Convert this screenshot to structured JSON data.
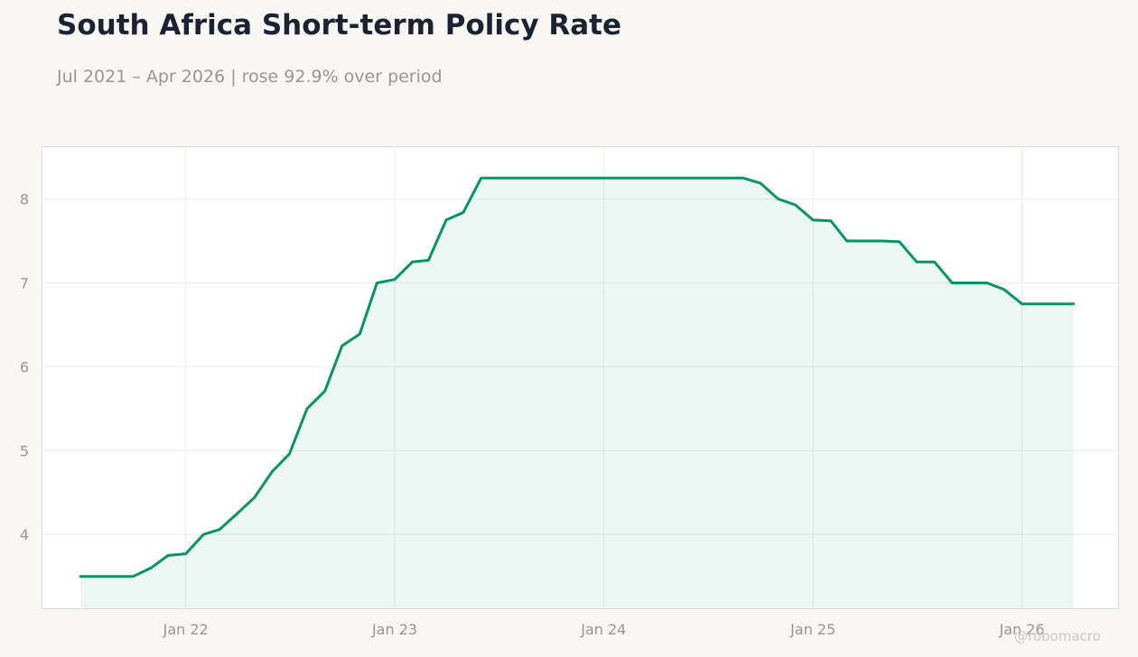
{
  "header": {
    "title": "South Africa Short-term Policy Rate",
    "subtitle": "Jul 2021 – Apr 2026 | rose 92.9% over period"
  },
  "watermark": "@robomacro",
  "colors": {
    "line": "#079365",
    "area_fill": "#079365",
    "background": "#f8f7f4",
    "plot_background": "#ffffff",
    "grid": "#ececea",
    "text_muted": "#969693",
    "title": "#1b2333"
  },
  "chart_data": {
    "type": "area",
    "title": "South Africa Short-term Policy Rate",
    "subtitle": "Jul 2021 – Apr 2026 | rose 92.9% over period",
    "xlabel": "",
    "ylabel": "",
    "xlim": [
      "2021-04-24",
      "2026-06-18"
    ],
    "ylim": [
      3.12,
      8.63
    ],
    "grid": true,
    "legend": "none",
    "x_ticks": [
      {
        "date": "2022-01-01",
        "label": "Jan 22"
      },
      {
        "date": "2023-01-01",
        "label": "Jan 23"
      },
      {
        "date": "2024-01-01",
        "label": "Jan 24"
      },
      {
        "date": "2025-01-01",
        "label": "Jan 25"
      },
      {
        "date": "2026-01-01",
        "label": "Jan 26"
      }
    ],
    "y_ticks": [
      4,
      5,
      6,
      7,
      8
    ],
    "series": [
      {
        "x": [
          "2021-07-01",
          "2021-08-01",
          "2021-09-01",
          "2021-10-01",
          "2021-11-01",
          "2021-12-01",
          "2022-01-01",
          "2022-02-01",
          "2022-03-01",
          "2022-04-01",
          "2022-05-01",
          "2022-06-01",
          "2022-07-01",
          "2022-08-01",
          "2022-09-01",
          "2022-10-01",
          "2022-11-01",
          "2022-12-01",
          "2023-01-01",
          "2023-02-01",
          "2023-03-01",
          "2023-04-01",
          "2023-05-01",
          "2023-06-01",
          "2023-07-01",
          "2023-08-01",
          "2023-09-01",
          "2023-10-01",
          "2023-11-01",
          "2023-12-01",
          "2024-01-01",
          "2024-02-01",
          "2024-03-01",
          "2024-04-01",
          "2024-05-01",
          "2024-06-01",
          "2024-07-01",
          "2024-08-01",
          "2024-09-01",
          "2024-10-01",
          "2024-11-01",
          "2024-12-01",
          "2025-01-01",
          "2025-02-01",
          "2025-03-01",
          "2025-04-01",
          "2025-05-01",
          "2025-06-01",
          "2025-07-01",
          "2025-08-01",
          "2025-09-01",
          "2025-10-01",
          "2025-11-01",
          "2025-12-01",
          "2026-01-01",
          "2026-02-01",
          "2026-03-01",
          "2026-04-01"
        ],
        "values": [
          3.5,
          3.5,
          3.5,
          3.5,
          3.6,
          3.75,
          3.77,
          4.0,
          4.06,
          4.25,
          4.44,
          4.75,
          4.96,
          5.5,
          5.71,
          6.25,
          6.39,
          7.0,
          7.04,
          7.25,
          7.27,
          7.75,
          7.84,
          8.25,
          8.25,
          8.25,
          8.25,
          8.25,
          8.25,
          8.25,
          8.25,
          8.25,
          8.25,
          8.25,
          8.25,
          8.25,
          8.25,
          8.25,
          8.25,
          8.19,
          8.0,
          7.93,
          7.75,
          7.74,
          7.5,
          7.5,
          7.5,
          7.49,
          7.25,
          7.25,
          7.0,
          7.0,
          7.0,
          6.92,
          6.75,
          6.75,
          6.75,
          6.75
        ]
      }
    ]
  }
}
